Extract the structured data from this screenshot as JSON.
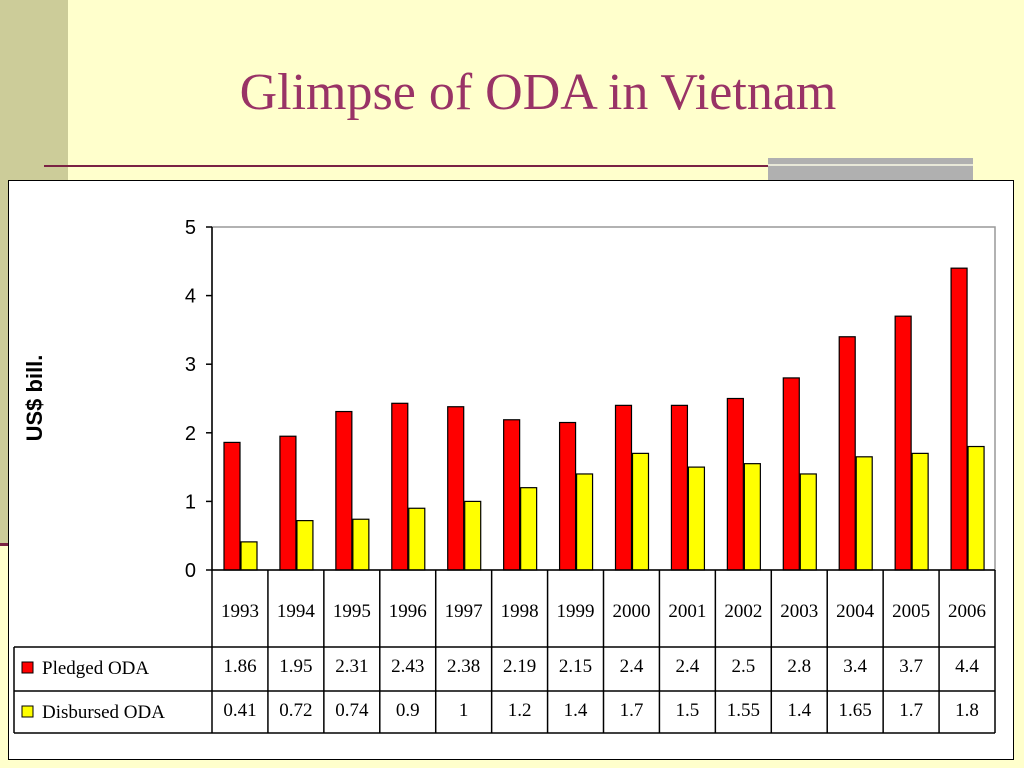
{
  "slide": {
    "title": "Glimpse of ODA in Vietnam"
  },
  "colors": {
    "background": "#FFFFCC",
    "title": "#993366",
    "accent_band": "#CCCC99",
    "pledged": "#FF0000",
    "disbursed": "#FFFF00"
  },
  "chart_data": {
    "type": "bar",
    "title": "",
    "xlabel": "",
    "ylabel": "US$ bill.",
    "ylim": [
      0,
      5
    ],
    "yticks": [
      "0",
      "1",
      "2",
      "3",
      "4",
      "5"
    ],
    "grid": false,
    "legend": "data-table",
    "categories": [
      "1993",
      "1994",
      "1995",
      "1996",
      "1997",
      "1998",
      "1999",
      "2000",
      "2001",
      "2002",
      "2003",
      "2004",
      "2005",
      "2006"
    ],
    "series": [
      {
        "name": "Pledged ODA",
        "color": "#FF0000",
        "values": [
          1.86,
          1.95,
          2.31,
          2.43,
          2.38,
          2.19,
          2.15,
          2.4,
          2.4,
          2.5,
          2.8,
          3.4,
          3.7,
          4.4
        ],
        "labels": [
          "1.86",
          "1.95",
          "2.31",
          "2.43",
          "2.38",
          "2.19",
          "2.15",
          "2.4",
          "2.4",
          "2.5",
          "2.8",
          "3.4",
          "3.7",
          "4.4"
        ]
      },
      {
        "name": "Disbursed ODA",
        "color": "#FFFF00",
        "values": [
          0.41,
          0.72,
          0.74,
          0.9,
          1,
          1.2,
          1.4,
          1.7,
          1.5,
          1.55,
          1.4,
          1.65,
          1.7,
          1.8
        ],
        "labels": [
          "0.41",
          "0.72",
          "0.74",
          "0.9",
          "1",
          "1.2",
          "1.4",
          "1.7",
          "1.5",
          "1.55",
          "1.4",
          "1.65",
          "1.7",
          "1.8"
        ]
      }
    ]
  }
}
